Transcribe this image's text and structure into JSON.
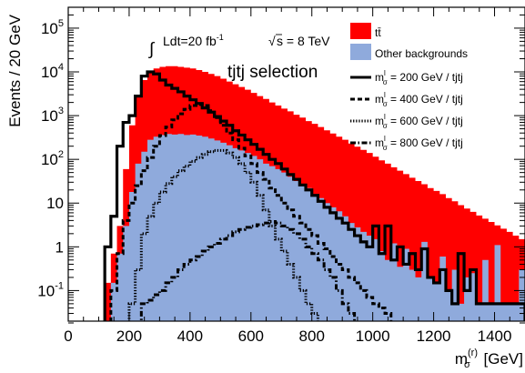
{
  "chart_data": {
    "type": "area",
    "title": "",
    "xlabel": {
      "main": "m",
      "sup": "(r)",
      "sub": "σ",
      "unit": " [GeV]"
    },
    "ylabel": "Events / 20 GeV",
    "xlim": [
      0,
      1500
    ],
    "ylim": [
      0.02,
      300000
    ],
    "y_scale": "log",
    "grid": false,
    "legend_position": "top-right",
    "x_ticks": [
      0,
      200,
      400,
      600,
      800,
      1000,
      1200,
      1400
    ],
    "y_ticks": [
      {
        "value": 0.1,
        "base": "10",
        "exp": "-1"
      },
      {
        "value": 1,
        "base": "1",
        "exp": ""
      },
      {
        "value": 10,
        "base": "10",
        "exp": ""
      },
      {
        "value": 100,
        "base": "10",
        "exp": "2"
      },
      {
        "value": 1000,
        "base": "10",
        "exp": "3"
      },
      {
        "value": 10000,
        "base": "10",
        "exp": "4"
      },
      {
        "value": 100000,
        "base": "10",
        "exp": "5"
      }
    ],
    "annotations": {
      "lumi": "Ldt=20 fb",
      "lumi_sup": "-1",
      "energy": "s = 8 TeV",
      "selection": "tjtj selection"
    },
    "legend": [
      {
        "key": "ttbar",
        "text": "tt̄",
        "style": "fill",
        "color": "#ff0000"
      },
      {
        "key": "other",
        "text": "Other backgrounds",
        "style": "fill",
        "color": "#8faadc"
      },
      {
        "key": "s200",
        "text_pre": "m",
        "sup": "l",
        "sub": "σ",
        "text_post": " = 200 GeV / tjtj",
        "style": "solid"
      },
      {
        "key": "s400",
        "text_pre": "m",
        "sup": "l",
        "sub": "σ",
        "text_post": " = 400 GeV / tjtj",
        "style": "dashed"
      },
      {
        "key": "s600",
        "text_pre": "m",
        "sup": "l",
        "sub": "σ",
        "text_post": " = 600 GeV / tjtj",
        "style": "dotted"
      },
      {
        "key": "s800",
        "text_pre": "m",
        "sup": "l",
        "sub": "σ",
        "text_post": " = 800 GeV / tjtj",
        "style": "dashdot"
      }
    ],
    "bin_width": 20,
    "bin_start": 0,
    "series": [
      {
        "name": "tt̄",
        "key": "ttbar",
        "style": "fill",
        "color": "#ff0000",
        "values": [
          0,
          0,
          0,
          0,
          0,
          0,
          0.15,
          0.7,
          3,
          60,
          600,
          3000,
          6500,
          10000,
          12000,
          13000,
          13500,
          13500,
          13000,
          12500,
          12000,
          11000,
          10000,
          9000,
          8000,
          7000,
          6000,
          5200,
          4500,
          3900,
          3300,
          2800,
          2400,
          2000,
          1700,
          1450,
          1250,
          1050,
          900,
          750,
          650,
          550,
          460,
          390,
          330,
          280,
          230,
          195,
          165,
          140,
          115,
          95,
          80,
          66,
          55,
          46,
          38,
          32,
          27,
          22,
          19,
          16,
          13,
          11,
          9,
          7.5,
          6.3,
          5.2,
          4.4,
          3.7,
          3.1,
          2.6,
          2.2,
          1.8,
          1.5
        ]
      },
      {
        "name": "Other backgrounds",
        "key": "other",
        "style": "fill",
        "color": "#8faadc",
        "values": [
          0,
          0,
          0,
          0,
          0,
          0,
          0,
          0.15,
          0.7,
          3,
          18,
          80,
          150,
          280,
          330,
          360,
          380,
          370,
          380,
          360,
          370,
          350,
          330,
          300,
          270,
          240,
          210,
          180,
          160,
          140,
          120,
          100,
          80,
          70,
          60,
          50,
          40,
          32,
          26,
          22,
          16,
          13,
          10,
          8,
          6.5,
          5,
          3.5,
          2.8,
          2.2,
          1.8,
          1.5,
          0.8,
          0.5,
          1.2,
          0.35,
          0.9,
          0.3,
          0.2,
          1.3,
          0.2,
          0.15,
          0.6,
          0.1,
          0.3,
          0.05,
          0.2,
          0.25,
          0.05,
          0.5,
          0.05,
          1.1,
          0.05,
          0.05,
          0.05,
          0.3
        ]
      },
      {
        "name": "m = 200 GeV / tjtj",
        "key": "s200",
        "style": "solid",
        "values": [
          0,
          0,
          0,
          0,
          0,
          0,
          1,
          5,
          200,
          700,
          1000,
          2800,
          8000,
          10000,
          9000,
          6500,
          5000,
          4200,
          3500,
          2800,
          2300,
          1900,
          1500,
          1200,
          950,
          750,
          600,
          450,
          360,
          280,
          220,
          170,
          130,
          100,
          80,
          60,
          45,
          35,
          26,
          20,
          15,
          11,
          8,
          6,
          4.5,
          3.5,
          2.5,
          1.8,
          1.3,
          1.0,
          3,
          0.7,
          3,
          0.5,
          1,
          0.4,
          0.7,
          0.3,
          0.9,
          0.2,
          0.15,
          0.3,
          0.1,
          0.05,
          0.7,
          0.1,
          0.3,
          0.05,
          0.05,
          0.05,
          0.05,
          0.05,
          0.05,
          0.05,
          0.05
        ]
      },
      {
        "name": "m = 400 GeV / tjtj",
        "key": "s400",
        "style": "dashed",
        "values": [
          0,
          0,
          0,
          0,
          0,
          0,
          0,
          0.1,
          0.7,
          4,
          10,
          25,
          55,
          110,
          200,
          350,
          550,
          800,
          1100,
          1400,
          1700,
          1800,
          1700,
          1300,
          900,
          600,
          400,
          280,
          180,
          120,
          80,
          50,
          35,
          22,
          15,
          10,
          7,
          5,
          3.5,
          2.5,
          1.8,
          1.2,
          0.9,
          0.6,
          0.4,
          0.3,
          0.2,
          0.15,
          0.1,
          0.07,
          0.05,
          0.04,
          0.03,
          0.02,
          0,
          0,
          0,
          0,
          0,
          0,
          0,
          0,
          0,
          0,
          0,
          0,
          0,
          0,
          0,
          0,
          0,
          0,
          0,
          0,
          0
        ]
      },
      {
        "name": "m = 600 GeV / tjtj",
        "key": "s600",
        "style": "dotted",
        "values": [
          0,
          0,
          0,
          0,
          0,
          0,
          0,
          0,
          0,
          0,
          0.05,
          0.3,
          2,
          5,
          10,
          18,
          28,
          40,
          55,
          70,
          90,
          110,
          130,
          150,
          160,
          160,
          140,
          110,
          80,
          50,
          30,
          15,
          7,
          3,
          1.5,
          0.8,
          0.4,
          0.2,
          0.1,
          0.05,
          0.03,
          0.02,
          0,
          0,
          0,
          0,
          0,
          0,
          0,
          0,
          0,
          0,
          0,
          0,
          0,
          0,
          0,
          0,
          0,
          0,
          0,
          0,
          0,
          0,
          0,
          0,
          0,
          0,
          0,
          0,
          0,
          0,
          0,
          0,
          0
        ]
      },
      {
        "name": "m = 800 GeV / tjtj",
        "key": "s800",
        "style": "dashdot",
        "values": [
          0,
          0,
          0,
          0,
          0,
          0,
          0,
          0,
          0,
          0,
          0,
          0,
          0.05,
          0.06,
          0.08,
          0.1,
          0.15,
          0.2,
          0.3,
          0.4,
          0.5,
          0.6,
          0.8,
          1.0,
          1.2,
          1.5,
          1.8,
          2.2,
          2.5,
          2.8,
          3.0,
          3.2,
          3.5,
          3.8,
          3.5,
          3.0,
          2.5,
          2.0,
          1.5,
          1.0,
          0.7,
          0.5,
          0.3,
          0.2,
          0.1,
          0.05,
          0.03,
          0,
          0,
          0,
          0,
          0,
          0,
          0,
          0,
          0,
          0,
          0,
          0,
          0,
          0,
          0,
          0,
          0,
          0,
          0,
          0,
          0,
          0,
          0,
          0,
          0,
          0,
          0,
          0
        ]
      }
    ]
  }
}
